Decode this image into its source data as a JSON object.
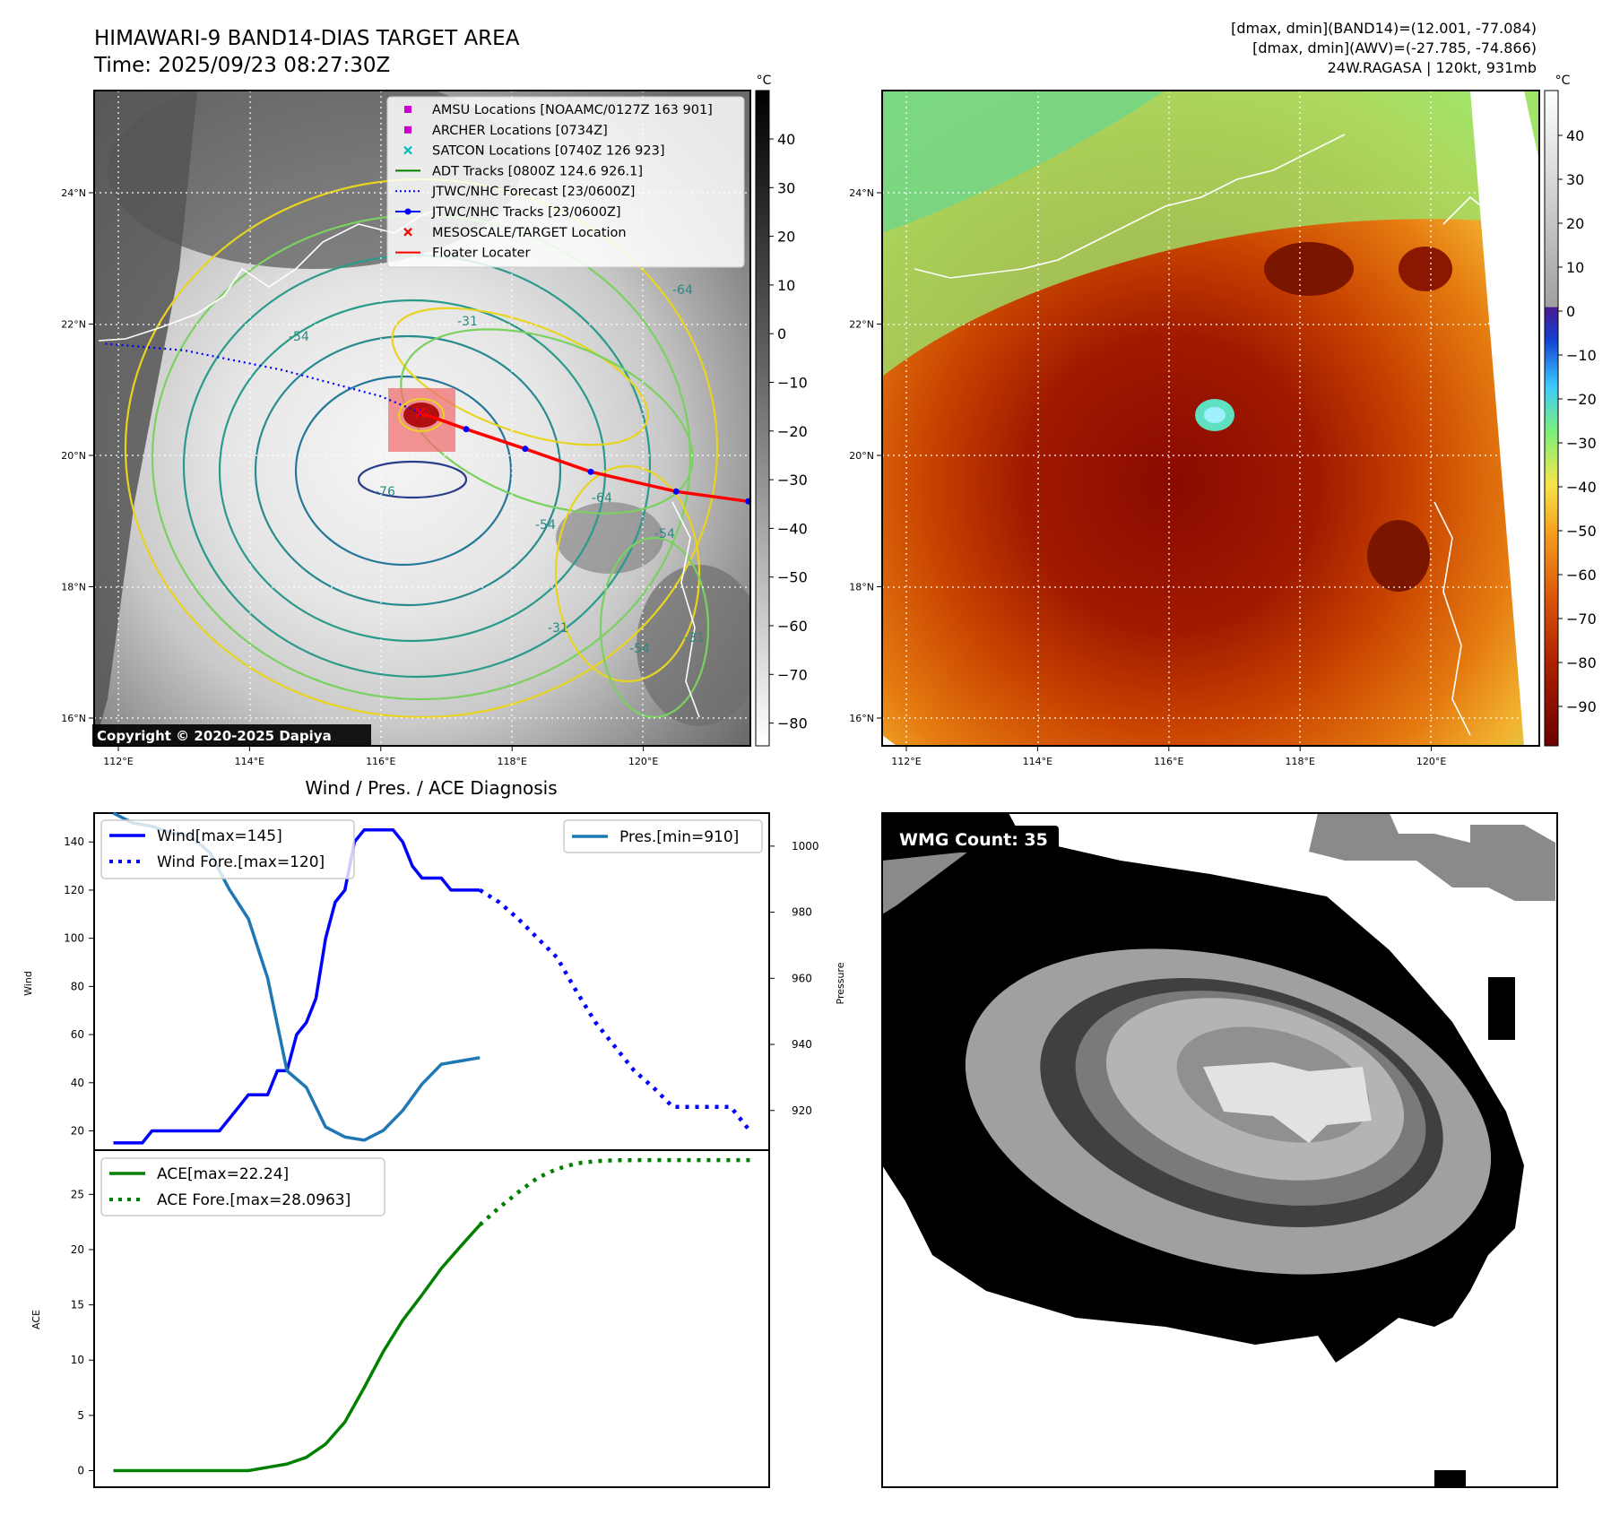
{
  "header": {
    "title": "HIMAWARI-9 BAND14-DIAS TARGET AREA",
    "time": "Time: 2025/09/23 08:27:30Z",
    "info_line1": "[dmax, dmin](BAND14)=(12.001, -77.084)",
    "info_line2": "[dmax, dmin](AWV)=(-27.785, -74.866)",
    "info_line3": "24W.RAGASA | 120kt, 931mb"
  },
  "maps": {
    "lon_ticks": [
      "112°E",
      "114°E",
      "116°E",
      "118°E",
      "120°E"
    ],
    "lat_ticks": [
      "24°N",
      "22°N",
      "20°N",
      "18°N",
      "16°N"
    ],
    "colorbar_unit": "°C",
    "left_colorbar_ticks": [
      "40",
      "30",
      "20",
      "10",
      "0",
      "−10",
      "−20",
      "−30",
      "−40",
      "−50",
      "−60",
      "−70",
      "−80"
    ],
    "right_colorbar_ticks": [
      "40",
      "30",
      "20",
      "10",
      "0",
      "−10",
      "−20",
      "−30",
      "−40",
      "−50",
      "−60",
      "−70",
      "−80",
      "−90"
    ],
    "copyright": "Copyright © 2020-2025 Dapiya",
    "contour_labels": [
      "-54",
      "-31",
      "-64",
      "-76",
      "-54",
      "-31",
      "-54",
      "-64",
      "-31",
      "-54"
    ],
    "track": {
      "forecast": [
        [
          111.8,
          21.7
        ],
        [
          113.0,
          21.6
        ],
        [
          114.5,
          21.3
        ],
        [
          116.0,
          20.9
        ],
        [
          116.6,
          20.65
        ]
      ],
      "history": [
        [
          116.6,
          20.65
        ],
        [
          117.3,
          20.4
        ],
        [
          118.2,
          20.1
        ],
        [
          119.2,
          19.75
        ],
        [
          120.5,
          19.45
        ],
        [
          121.6,
          19.3
        ]
      ]
    },
    "legend": [
      {
        "label": "AMSU Locations [NOAAMC/0127Z 163 901]",
        "color": "#cc00cc",
        "marker": "square"
      },
      {
        "label": "ARCHER Locations [0734Z]",
        "color": "#cc00cc",
        "marker": "square"
      },
      {
        "label": "SATCON Locations [0740Z 126 923]",
        "color": "#00bbbb",
        "marker": "x"
      },
      {
        "label": "ADT Tracks [0800Z 124.6 926.1]",
        "color": "#008000",
        "marker": "line"
      },
      {
        "label": "JTWC/NHC Forecast [23/0600Z]",
        "color": "#0000ff",
        "marker": "dotted"
      },
      {
        "label": "JTWC/NHC Tracks [23/0600Z]",
        "color": "#0000ff",
        "marker": "line-dot"
      },
      {
        "label": "MESOSCALE/TARGET Location",
        "color": "#ff0000",
        "marker": "x"
      },
      {
        "label": "Floater Locater",
        "color": "#ff0000",
        "marker": "line"
      }
    ]
  },
  "diag": {
    "title": "Wind / Pres. / ACE Diagnosis",
    "wind_ylabel": "Wind",
    "pres_ylabel": "Pressure",
    "ace_ylabel": "ACE",
    "legend_wind": "Wind[max=145]",
    "legend_wind_fore": "Wind Fore.[max=120]",
    "legend_pres": "Pres.[min=910]",
    "legend_ace": "ACE[max=22.24]",
    "legend_ace_fore": "ACE Fore.[max=28.0963]",
    "wind_ticks": [
      "140",
      "120",
      "100",
      "80",
      "60",
      "40",
      "20"
    ],
    "pres_ticks": [
      "1000",
      "980",
      "960",
      "940",
      "920"
    ],
    "ace_ticks": [
      "25",
      "20",
      "15",
      "10",
      "5",
      "0"
    ]
  },
  "wmg": {
    "label": "WMG Count: 35"
  },
  "chart_data": [
    {
      "type": "line",
      "title": "",
      "xlabel": "",
      "ylabel": "Wind",
      "ylim": [
        12,
        152
      ],
      "series": [
        {
          "name": "Wind[max=145]",
          "color": "#0000ff",
          "x": [
            0,
            1,
            2,
            3,
            4,
            5,
            6,
            7,
            8,
            9,
            10,
            11,
            12,
            13,
            14,
            15,
            16,
            17,
            18,
            19,
            20,
            21,
            22,
            23,
            24,
            25,
            26,
            27,
            28,
            29,
            30,
            31,
            32,
            33,
            34,
            35,
            36,
            37,
            38
          ],
          "values": [
            15,
            15,
            15,
            15,
            20,
            20,
            20,
            20,
            20,
            20,
            20,
            20,
            25,
            30,
            35,
            35,
            35,
            45,
            45,
            60,
            65,
            75,
            100,
            115,
            120,
            140,
            145,
            145,
            145,
            145,
            140,
            130,
            125,
            125,
            125,
            120,
            120,
            120,
            120
          ]
        },
        {
          "name": "Wind Fore.[max=120]",
          "color": "#0000ff",
          "dashed": true,
          "x": [
            38,
            40,
            42,
            44,
            46,
            48,
            50,
            52,
            54,
            56,
            58,
            60,
            62,
            64,
            66
          ],
          "values": [
            120,
            115,
            108,
            100,
            92,
            78,
            65,
            55,
            45,
            38,
            30,
            30,
            30,
            30,
            20
          ]
        }
      ]
    },
    {
      "type": "line",
      "title": "",
      "xlabel": "",
      "ylabel": "Pressure",
      "ylim": [
        908,
        1010
      ],
      "series": [
        {
          "name": "Pres.[min=910]",
          "color": "#1f77b4",
          "x": [
            0,
            2,
            4,
            6,
            8,
            10,
            12,
            14,
            16,
            18,
            20,
            22,
            24,
            26,
            28,
            30,
            32,
            34,
            36,
            38
          ],
          "values": [
            1010,
            1007,
            1006,
            1004,
            1003,
            998,
            987,
            978,
            960,
            932,
            927,
            915,
            912,
            911,
            914,
            920,
            928,
            934,
            935,
            936
          ]
        }
      ]
    },
    {
      "type": "line",
      "title": "",
      "xlabel": "",
      "ylabel": "ACE",
      "ylim": [
        -1.5,
        29
      ],
      "series": [
        {
          "name": "ACE[max=22.24]",
          "color": "#008000",
          "x": [
            0,
            4,
            8,
            12,
            14,
            16,
            18,
            20,
            22,
            24,
            26,
            28,
            30,
            32,
            34,
            36,
            38
          ],
          "values": [
            0,
            0,
            0,
            0,
            0,
            0.3,
            0.6,
            1.2,
            2.4,
            4.4,
            7.5,
            10.8,
            13.6,
            15.9,
            18.3,
            20.3,
            22.24
          ]
        },
        {
          "name": "ACE Fore.[max=28.0963]",
          "color": "#008000",
          "dashed": true,
          "x": [
            38,
            40,
            42,
            44,
            46,
            48,
            50,
            52,
            54,
            56,
            58,
            60,
            62,
            64,
            66
          ],
          "values": [
            22.24,
            23.8,
            25.2,
            26.5,
            27.3,
            27.8,
            28.0,
            28.08,
            28.09,
            28.0963,
            28.0963,
            28.0963,
            28.0963,
            28.0963,
            28.0963
          ]
        }
      ]
    }
  ]
}
